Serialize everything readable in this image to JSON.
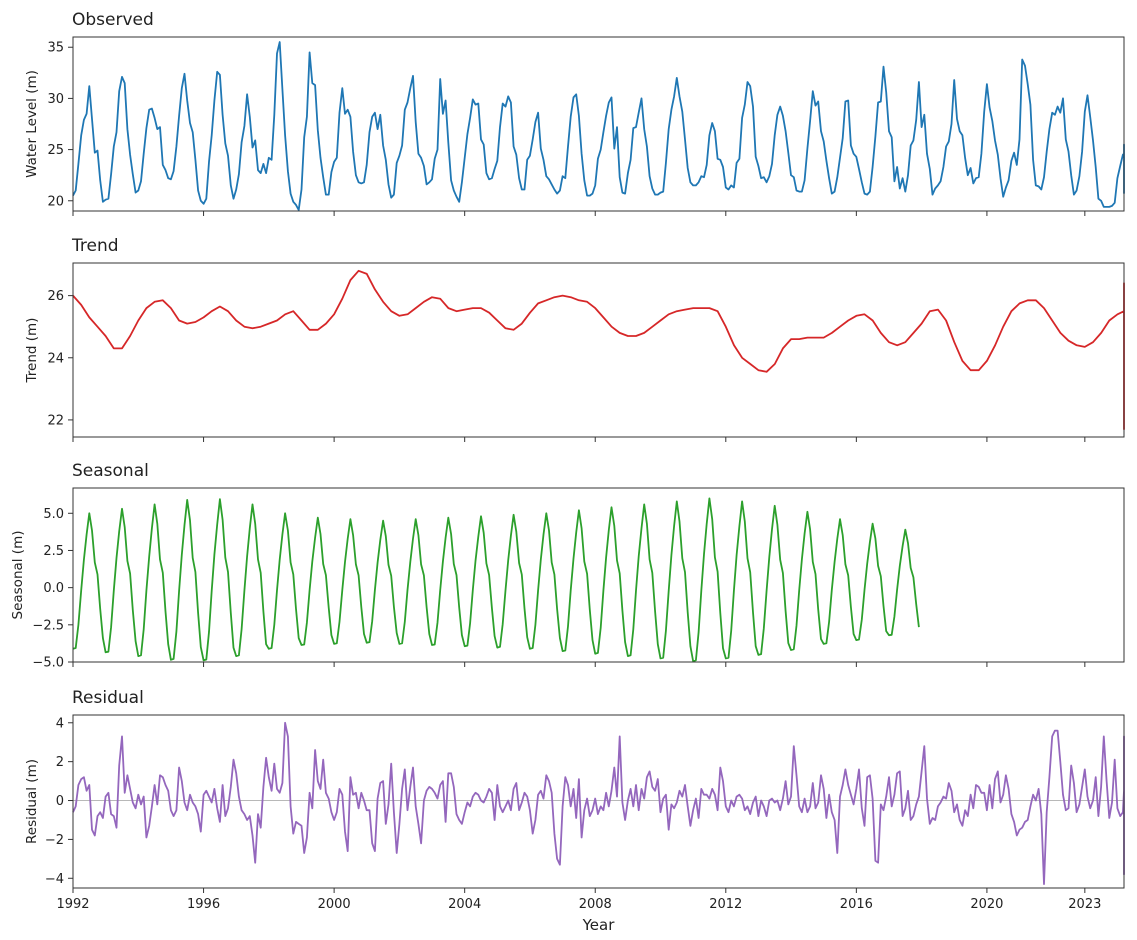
{
  "chart_data": [
    {
      "type": "line",
      "title": "Observed",
      "ylabel": "Water Level (m)",
      "color": "#1f77b4",
      "ylim": [
        19.0,
        36.0
      ],
      "yticks": [
        20,
        25,
        30,
        35
      ],
      "ytick_labels": [
        "20",
        "25",
        "30",
        "35"
      ],
      "start": 1992.0,
      "step": 0.08333,
      "values": [
        20.5,
        21.0,
        23.6,
        26.4,
        27.9,
        28.5,
        31.2,
        28.0,
        24.7,
        24.9,
        22.0,
        19.9,
        20.1,
        20.2,
        22.6,
        25.3,
        26.7,
        30.7,
        32.1,
        31.5,
        27.0,
        24.5,
        22.6,
        20.8,
        21.0,
        21.9,
        24.6,
        27.1,
        28.9,
        29.0,
        28.1,
        27.0,
        27.2,
        23.5,
        23.0,
        22.2,
        22.1,
        22.9,
        25.3,
        28.3,
        31.0,
        32.4,
        29.8,
        27.6,
        26.7,
        24.0,
        21.0,
        20.0,
        19.7,
        20.2,
        23.8,
        26.4,
        29.8,
        32.6,
        32.3,
        28.4,
        25.6,
        24.4,
        21.5,
        20.2,
        21.1,
        22.6,
        25.7,
        27.3,
        30.4,
        28.2,
        25.2,
        25.9,
        23.0,
        22.7,
        23.6,
        22.7,
        24.2,
        24.0,
        28.4,
        34.4,
        35.5,
        30.9,
        26.4,
        22.9,
        20.7,
        19.9,
        19.6,
        19.1,
        21.1,
        26.2,
        28.2,
        34.5,
        31.5,
        31.3,
        26.9,
        24.2,
        22.3,
        20.6,
        20.6,
        22.8,
        23.8,
        24.2,
        28.6,
        31.0,
        28.5,
        28.9,
        28.2,
        24.8,
        22.5,
        21.8,
        21.7,
        21.8,
        23.5,
        26.7,
        28.2,
        28.6,
        27.0,
        28.4,
        25.4,
        24.0,
        21.6,
        20.3,
        20.6,
        23.7,
        24.4,
        25.4,
        28.9,
        29.6,
        31.0,
        32.2,
        27.7,
        24.6,
        24.2,
        23.4,
        21.6,
        21.8,
        22.1,
        24.1,
        25.0,
        31.9,
        28.5,
        29.8,
        25.7,
        22.0,
        21.0,
        20.4,
        19.9,
        21.8,
        24.2,
        26.5,
        28.1,
        29.9,
        29.4,
        29.5,
        26.0,
        25.5,
        22.7,
        22.1,
        22.2,
        23.1,
        23.9,
        27.2,
        29.5,
        29.2,
        30.2,
        29.6,
        25.3,
        24.5,
        22.2,
        21.1,
        21.1,
        24.0,
        24.4,
        26.0,
        27.7,
        28.6,
        25.1,
        24.0,
        22.4,
        22.1,
        21.6,
        21.1,
        20.7,
        21.0,
        22.4,
        22.2,
        25.3,
        28.2,
        30.1,
        30.4,
        28.3,
        24.6,
        22.0,
        20.5,
        20.5,
        20.7,
        21.5,
        24.1,
        25.0,
        26.7,
        28.3,
        29.6,
        30.1,
        25.1,
        27.2,
        22.3,
        20.8,
        20.7,
        22.7,
        24.0,
        27.1,
        27.2,
        28.6,
        30.0,
        27.0,
        25.3,
        22.4,
        21.2,
        20.6,
        20.6,
        20.8,
        20.9,
        23.7,
        27.0,
        28.9,
        30.2,
        32.0,
        30.2,
        28.7,
        26.0,
        23.2,
        21.8,
        21.5,
        21.5,
        21.8,
        22.4,
        22.3,
        23.5,
        26.4,
        27.6,
        26.8,
        24.1,
        24.0,
        23.3,
        21.3,
        21.1,
        21.5,
        21.3,
        23.7,
        24.1,
        28.1,
        29.4,
        31.6,
        31.2,
        29.2,
        24.3,
        23.4,
        22.2,
        22.3,
        21.8,
        22.4,
        23.6,
        26.4,
        28.4,
        29.2,
        28.3,
        26.8,
        24.7,
        22.5,
        22.3,
        21.0,
        20.9,
        20.9,
        22.0,
        25.1,
        27.8,
        30.7,
        29.3,
        29.7,
        26.8,
        25.8,
        23.9,
        22.2,
        20.7,
        20.9,
        22.3,
        24.2,
        26.1,
        29.7,
        29.8,
        25.4,
        24.6,
        24.3,
        23.1,
        21.8,
        20.7,
        20.6,
        20.9,
        23.3,
        26.3,
        29.6,
        29.7,
        33.1,
        30.6,
        26.8,
        26.2,
        21.9,
        23.3,
        21.2,
        22.2,
        20.9,
        22.5,
        25.4,
        25.9,
        27.9,
        31.6,
        27.2,
        28.4,
        24.6,
        23.1,
        20.6,
        21.2,
        21.5,
        21.9,
        23.3,
        25.3,
        25.8,
        27.5,
        31.8,
        28.0,
        26.8,
        26.4,
        24.2,
        22.5,
        23.2,
        21.7,
        22.2,
        22.3,
        24.6,
        28.7,
        31.4,
        29.1,
        27.8,
        25.9,
        24.5,
        22.2,
        20.4,
        21.3,
        22.0,
        23.9,
        24.7,
        23.5,
        26.0,
        33.8,
        33.2,
        31.4,
        29.4,
        24.0,
        21.5,
        21.4,
        21.1,
        22.3,
        24.8,
        27.0,
        28.6,
        28.4,
        29.2,
        28.6,
        30.0,
        26.0,
        24.8,
        22.5,
        20.6,
        21.0,
        22.4,
        24.8,
        28.7,
        30.3,
        28.2,
        25.9,
        23.3,
        20.2,
        20.0,
        19.4,
        19.4,
        19.4,
        19.5,
        19.8,
        22.2,
        23.4,
        24.5,
        24.6,
        25.5,
        24.1,
        24.8,
        22.2,
        20.7
      ]
    },
    {
      "type": "line",
      "title": "Trend",
      "ylabel": "Trend (m)",
      "color": "#d62728",
      "ylim": [
        21.45,
        27.05
      ],
      "yticks": [
        22,
        24,
        26
      ],
      "ytick_labels": [
        "22",
        "24",
        "26"
      ],
      "start": 1992.0,
      "step": 0.25,
      "values": [
        26.0,
        25.7,
        25.3,
        25.0,
        24.7,
        24.3,
        24.3,
        24.7,
        25.2,
        25.6,
        25.8,
        25.85,
        25.6,
        25.2,
        25.1,
        25.15,
        25.3,
        25.5,
        25.65,
        25.5,
        25.2,
        25.0,
        24.95,
        25.0,
        25.1,
        25.2,
        25.4,
        25.5,
        25.2,
        24.9,
        24.9,
        25.1,
        25.4,
        25.9,
        26.5,
        26.8,
        26.7,
        26.2,
        25.8,
        25.5,
        25.35,
        25.4,
        25.6,
        25.8,
        25.95,
        25.9,
        25.6,
        25.5,
        25.55,
        25.6,
        25.6,
        25.45,
        25.2,
        24.95,
        24.9,
        25.1,
        25.45,
        25.75,
        25.85,
        25.95,
        26.0,
        25.95,
        25.85,
        25.8,
        25.6,
        25.3,
        25.0,
        24.8,
        24.7,
        24.7,
        24.8,
        25.0,
        25.2,
        25.4,
        25.5,
        25.55,
        25.6,
        25.6,
        25.6,
        25.5,
        25.0,
        24.4,
        24.0,
        23.8,
        23.6,
        23.55,
        23.8,
        24.3,
        24.6,
        24.6,
        24.65,
        24.65,
        24.65,
        24.8,
        25.0,
        25.2,
        25.35,
        25.4,
        25.2,
        24.8,
        24.5,
        24.4,
        24.5,
        24.8,
        25.1,
        25.5,
        25.55,
        25.2,
        24.5,
        23.9,
        23.6,
        23.6,
        23.9,
        24.4,
        25.0,
        25.5,
        25.75,
        25.85,
        25.85,
        25.6,
        25.2,
        24.8,
        24.55,
        24.4,
        24.35,
        24.5,
        24.8,
        25.2,
        25.4,
        25.5,
        25.4,
        25.2,
        25.1,
        25.25,
        25.5,
        25.8,
        26.1,
        26.2,
        26.0,
        25.7,
        25.4,
        25.2,
        24.95,
        24.95,
        25.2,
        25.2,
        25.0,
        24.8,
        24.6,
        24.6,
        24.75,
        25.0,
        25.3,
        25.55,
        25.5,
        25.35,
        25.1,
        24.9,
        24.9,
        25.2,
        25.8,
        26.25,
        26.4,
        26.4,
        26.3,
        26.0,
        25.6,
        25.5,
        25.6,
        25.7,
        25.6,
        25.0,
        24.2,
        23.5,
        22.9,
        22.3,
        21.8,
        21.7,
        21.95,
        22.3,
        22.7,
        23.1,
        23.5,
        23.85
      ]
    },
    {
      "type": "line",
      "title": "Seasonal",
      "ylabel": "Seasonal (m)",
      "color": "#2ca02c",
      "ylim": [
        -5.0,
        6.7
      ],
      "yticks": [
        -5.0,
        -2.5,
        0.0,
        2.5,
        5.0
      ],
      "ytick_labels": [
        "−5.0",
        "−2.5",
        "0.0",
        "2.5",
        "5.0"
      ],
      "start": 1992.0,
      "step": 0.08333,
      "cycle_shape": [
        -4.6,
        -4.55,
        -2.8,
        -0.2,
        2.1,
        4.0,
        5.6,
        4.3,
        1.9,
        1.0,
        -1.6,
        -3.8
      ],
      "cycle_amplitudes": [
        5.0,
        5.3,
        5.6,
        5.9,
        5.95,
        5.6,
        5.0,
        4.7,
        4.6,
        4.5,
        4.6,
        4.7,
        4.8,
        4.9,
        5.0,
        5.2,
        5.4,
        5.6,
        5.8,
        6.0,
        5.8,
        5.5,
        5.1,
        4.6,
        4.3,
        3.9
      ]
    },
    {
      "type": "line",
      "title": "Residual",
      "ylabel": "Residual (m)",
      "xlabel": "Year",
      "color": "#9467bd",
      "ylim": [
        -4.5,
        4.4
      ],
      "yticks": [
        -4,
        -2,
        0,
        2,
        4
      ],
      "ytick_labels": [
        "−4",
        "−2",
        "0",
        "2",
        "4"
      ],
      "xlim": [
        1992.0,
        2024.2
      ],
      "xticks": [
        1992,
        1996,
        2000,
        2004,
        2008,
        2012,
        2016,
        2020,
        2023
      ],
      "xtick_labels": [
        "1992",
        "1996",
        "2000",
        "2004",
        "2008",
        "2012",
        "2016",
        "2020",
        "2023"
      ],
      "start": 1992.0,
      "step": 0.08333,
      "values": [
        -0.6,
        -0.3,
        0.8,
        1.1,
        1.2,
        0.5,
        0.8,
        -1.5,
        -1.8,
        -0.8,
        -0.6,
        -0.9,
        0.2,
        0.4,
        -0.7,
        -0.8,
        -1.4,
        1.8,
        3.3,
        0.4,
        1.3,
        0.6,
        -0.1,
        -0.4,
        0.3,
        -0.2,
        0.2,
        -1.9,
        -1.3,
        -0.3,
        0.8,
        -0.2,
        1.3,
        1.2,
        0.8,
        0.5,
        -0.5,
        -0.8,
        -0.5,
        1.7,
        1.0,
        -0.1,
        -0.5,
        0.3,
        -0.1,
        -0.3,
        -0.7,
        -1.6,
        0.3,
        0.5,
        0.2,
        -0.1,
        0.6,
        -0.4,
        -1.1,
        0.8,
        -0.8,
        -0.4,
        0.7,
        2.1,
        1.4,
        0.2,
        -0.5,
        -0.7,
        -1.0,
        -0.8,
        -1.8,
        -3.2,
        -0.7,
        -1.4,
        0.7,
        2.2,
        1.2,
        0.5,
        1.9,
        0.6,
        0.4,
        0.9,
        4.0,
        3.3,
        -0.3,
        -1.7,
        -1.1,
        -1.2,
        -1.3,
        -2.7,
        -1.9,
        0.4,
        -0.4,
        2.6,
        1.0,
        0.6,
        2.1,
        0.4,
        0.1,
        -0.6,
        -1.0,
        -0.6,
        0.6,
        0.3,
        -1.6,
        -2.6,
        1.2,
        0.3,
        0.4,
        -0.4,
        0.4,
        0.0,
        -0.5,
        -0.5,
        -2.2,
        -2.6,
        0.1,
        0.9,
        1.0,
        -1.2,
        -0.2,
        1.9,
        -0.6,
        -2.7,
        -1.2,
        0.6,
        1.6,
        -0.5,
        0.7,
        1.7,
        -0.3,
        -1.2,
        -2.2,
        0.0,
        0.5,
        0.7,
        0.6,
        0.4,
        0.1,
        0.8,
        1.0,
        -1.1,
        1.4,
        1.4,
        0.7,
        -0.7,
        -1.0,
        -1.2,
        -0.6,
        -0.1,
        -0.3,
        0.2,
        0.4,
        0.3,
        0.0,
        -0.1,
        0.2,
        0.6,
        0.4,
        -1.0,
        0.8,
        -0.3,
        -0.6,
        -0.3,
        0.0,
        -0.5,
        0.6,
        0.9,
        -0.5,
        -0.1,
        0.4,
        0.2,
        -0.5,
        -1.7,
        -1.0,
        0.3,
        0.5,
        0.1,
        1.3,
        1.0,
        0.4,
        -1.7,
        -3.0,
        -3.3,
        -0.3,
        1.2,
        0.8,
        -0.3,
        0.6,
        -0.9,
        1.1,
        -1.9,
        -0.5,
        0.1,
        -0.8,
        -0.5,
        0.1,
        -0.7,
        -0.3,
        -0.5,
        0.4,
        -0.3,
        0.5,
        1.7,
        0.2,
        3.3,
        -0.1,
        -1.0,
        0.0,
        0.6,
        -0.3,
        0.8,
        -0.5,
        0.6,
        0.1,
        1.2,
        1.5,
        0.7,
        0.5,
        1.1,
        -0.6,
        0.1,
        0.3,
        -1.5,
        -0.2,
        -0.4,
        -0.1,
        0.5,
        0.2,
        0.8,
        -0.3,
        -1.3,
        -0.5,
        0.1,
        -0.9,
        0.6,
        0.3,
        0.3,
        0.1,
        0.6,
        0.3,
        -0.5,
        1.7,
        1.0,
        -0.3,
        -0.6,
        0.0,
        -0.3,
        0.2,
        0.3,
        0.1,
        -0.5,
        -0.3,
        -0.7,
        -0.1,
        0.2,
        -0.8,
        0.0,
        -0.3,
        -0.8,
        0.0,
        0.1,
        -0.1,
        0.0,
        -0.5,
        0.1,
        1.0,
        -0.2,
        0.2,
        2.8,
        1.3,
        -0.3,
        -0.6,
        0.1,
        -0.6,
        -0.3,
        0.9,
        -0.4,
        -0.1,
        1.3,
        0.6,
        -0.9,
        0.3,
        -0.6,
        -1.0,
        -2.7,
        0.2,
        0.8,
        1.6,
        0.8,
        0.3,
        -0.2,
        0.6,
        1.6,
        -0.4,
        -1.3,
        1.2,
        1.3,
        0.1,
        -3.1,
        -3.2,
        -0.2,
        -0.5,
        0.2,
        1.2,
        -0.3,
        0.3,
        1.4,
        1.5,
        -0.8,
        -0.4,
        0.5,
        -1.0,
        -0.8,
        -0.2,
        0.2,
        1.5,
        2.8,
        0.1,
        -1.2,
        -0.9,
        -1.0,
        -0.3,
        -0.1,
        0.2,
        0.1,
        0.9,
        0.5,
        -0.6,
        -0.2,
        -1.0,
        -1.3,
        -0.5,
        -0.8,
        0.3,
        -0.4,
        0.8,
        0.7,
        0.4,
        0.4,
        -0.5,
        0.8,
        -0.4,
        1.1,
        1.5,
        -0.1,
        0.3,
        1.3,
        0.6,
        -0.7,
        -1.1,
        -1.8,
        -1.5,
        -1.4,
        -1.1,
        -1.0,
        -0.3,
        0.3,
        0.0,
        0.6,
        -0.7,
        -4.3,
        -0.6,
        1.2,
        3.3,
        3.6,
        3.6,
        2.0,
        0.3,
        -0.5,
        -0.4,
        1.8,
        0.9,
        -0.6,
        -0.2,
        0.7,
        1.6,
        0.2,
        -0.4,
        0.0,
        1.2,
        -0.8,
        0.7,
        3.3,
        1.0,
        -0.9,
        -0.1,
        2.1,
        -0.4,
        -0.8,
        -0.6,
        0.5,
        1.3,
        -0.2,
        2.9,
        3.3,
        1.2,
        -0.5,
        -2.8,
        -3.8,
        -2.9,
        -1.3,
        0.3,
        0.8,
        0.5,
        0.1,
        -0.2,
        -0.6,
        -0.9,
        -1.4,
        -1.9,
        -2.1,
        -0.2,
        -0.1,
        0.8,
        1.0,
        0.8,
        0.7
      ]
    }
  ]
}
